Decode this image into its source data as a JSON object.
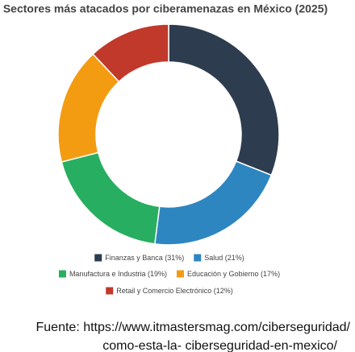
{
  "chart_data": {
    "type": "donut",
    "title": "Sectores más atacados por ciberamenazas en México (2025)",
    "categories": [
      "Finanzas y Banca (31%)",
      "Salud (21%)",
      "Manufactura e Industria (19%)",
      "Educación y Gobierno (17%)",
      "Retail y Comercio Electrónico (12%)"
    ],
    "values": [
      31,
      21,
      19,
      17,
      12
    ],
    "colors": [
      "#2e3c4f",
      "#2e86c1",
      "#28ae60",
      "#f39c12",
      "#c0392b"
    ],
    "legend": "bottom",
    "source": [
      "Fuente:  https://www.itmastersmag.com/ciberseguridad/",
      "como-esta-la- ciberseguridad-en-mexico/"
    ]
  }
}
